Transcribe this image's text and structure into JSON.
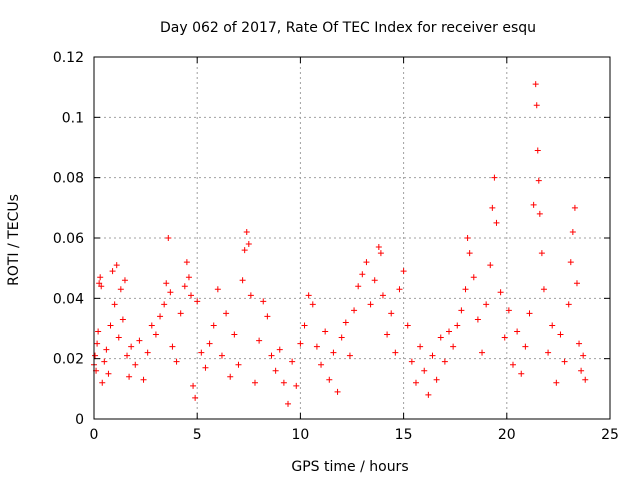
{
  "chart_data": {
    "type": "scatter",
    "title": "Day 062 of 2017, Rate Of TEC Index for receiver esqu",
    "xlabel": "GPS time / hours",
    "ylabel": "ROTI / TECUs",
    "xlim": [
      0,
      25
    ],
    "ylim": [
      0,
      0.12
    ],
    "x_ticks": [
      0,
      5,
      10,
      15,
      20,
      25
    ],
    "x_tick_labels": [
      "0",
      "5",
      "10",
      "15",
      "20",
      "25"
    ],
    "y_ticks": [
      0,
      0.02,
      0.04,
      0.06,
      0.08,
      0.1,
      0.12
    ],
    "y_tick_labels": [
      "0",
      "0.02",
      "0.04",
      "0.06",
      "0.08",
      "0.1",
      "0.12"
    ],
    "grid": true,
    "marker": "+",
    "series": [
      {
        "name": "ROTI",
        "color": "#ff0000",
        "points": [
          {
            "x": 0.0,
            "y": 0.018
          },
          {
            "x": 0.05,
            "y": 0.021
          },
          {
            "x": 0.1,
            "y": 0.016
          },
          {
            "x": 0.15,
            "y": 0.025
          },
          {
            "x": 0.2,
            "y": 0.029
          },
          {
            "x": 0.25,
            "y": 0.045
          },
          {
            "x": 0.3,
            "y": 0.047
          },
          {
            "x": 0.35,
            "y": 0.044
          },
          {
            "x": 0.4,
            "y": 0.012
          },
          {
            "x": 0.5,
            "y": 0.019
          },
          {
            "x": 0.6,
            "y": 0.023
          },
          {
            "x": 0.7,
            "y": 0.015
          },
          {
            "x": 0.8,
            "y": 0.031
          },
          {
            "x": 0.9,
            "y": 0.049
          },
          {
            "x": 1.0,
            "y": 0.038
          },
          {
            "x": 1.1,
            "y": 0.051
          },
          {
            "x": 1.2,
            "y": 0.027
          },
          {
            "x": 1.3,
            "y": 0.043
          },
          {
            "x": 1.4,
            "y": 0.033
          },
          {
            "x": 1.5,
            "y": 0.046
          },
          {
            "x": 1.6,
            "y": 0.021
          },
          {
            "x": 1.7,
            "y": 0.014
          },
          {
            "x": 1.8,
            "y": 0.024
          },
          {
            "x": 2.0,
            "y": 0.018
          },
          {
            "x": 2.2,
            "y": 0.026
          },
          {
            "x": 2.4,
            "y": 0.013
          },
          {
            "x": 2.6,
            "y": 0.022
          },
          {
            "x": 2.8,
            "y": 0.031
          },
          {
            "x": 3.0,
            "y": 0.028
          },
          {
            "x": 3.2,
            "y": 0.034
          },
          {
            "x": 3.4,
            "y": 0.038
          },
          {
            "x": 3.5,
            "y": 0.045
          },
          {
            "x": 3.6,
            "y": 0.06
          },
          {
            "x": 3.7,
            "y": 0.042
          },
          {
            "x": 3.8,
            "y": 0.024
          },
          {
            "x": 4.0,
            "y": 0.019
          },
          {
            "x": 4.2,
            "y": 0.035
          },
          {
            "x": 4.4,
            "y": 0.044
          },
          {
            "x": 4.5,
            "y": 0.052
          },
          {
            "x": 4.6,
            "y": 0.047
          },
          {
            "x": 4.7,
            "y": 0.041
          },
          {
            "x": 4.8,
            "y": 0.011
          },
          {
            "x": 4.9,
            "y": 0.007
          },
          {
            "x": 5.0,
            "y": 0.039
          },
          {
            "x": 5.2,
            "y": 0.022
          },
          {
            "x": 5.4,
            "y": 0.017
          },
          {
            "x": 5.6,
            "y": 0.025
          },
          {
            "x": 5.8,
            "y": 0.031
          },
          {
            "x": 6.0,
            "y": 0.043
          },
          {
            "x": 6.2,
            "y": 0.021
          },
          {
            "x": 6.4,
            "y": 0.035
          },
          {
            "x": 6.6,
            "y": 0.014
          },
          {
            "x": 6.8,
            "y": 0.028
          },
          {
            "x": 7.0,
            "y": 0.018
          },
          {
            "x": 7.2,
            "y": 0.046
          },
          {
            "x": 7.3,
            "y": 0.056
          },
          {
            "x": 7.4,
            "y": 0.062
          },
          {
            "x": 7.5,
            "y": 0.058
          },
          {
            "x": 7.6,
            "y": 0.041
          },
          {
            "x": 7.8,
            "y": 0.012
          },
          {
            "x": 8.0,
            "y": 0.026
          },
          {
            "x": 8.2,
            "y": 0.039
          },
          {
            "x": 8.4,
            "y": 0.034
          },
          {
            "x": 8.6,
            "y": 0.021
          },
          {
            "x": 8.8,
            "y": 0.016
          },
          {
            "x": 9.0,
            "y": 0.023
          },
          {
            "x": 9.2,
            "y": 0.012
          },
          {
            "x": 9.4,
            "y": 0.005
          },
          {
            "x": 9.6,
            "y": 0.019
          },
          {
            "x": 9.8,
            "y": 0.011
          },
          {
            "x": 10.0,
            "y": 0.025
          },
          {
            "x": 10.2,
            "y": 0.031
          },
          {
            "x": 10.4,
            "y": 0.041
          },
          {
            "x": 10.6,
            "y": 0.038
          },
          {
            "x": 10.8,
            "y": 0.024
          },
          {
            "x": 11.0,
            "y": 0.018
          },
          {
            "x": 11.2,
            "y": 0.029
          },
          {
            "x": 11.4,
            "y": 0.013
          },
          {
            "x": 11.6,
            "y": 0.022
          },
          {
            "x": 11.8,
            "y": 0.009
          },
          {
            "x": 12.0,
            "y": 0.027
          },
          {
            "x": 12.2,
            "y": 0.032
          },
          {
            "x": 12.4,
            "y": 0.021
          },
          {
            "x": 12.6,
            "y": 0.036
          },
          {
            "x": 12.8,
            "y": 0.044
          },
          {
            "x": 13.0,
            "y": 0.048
          },
          {
            "x": 13.2,
            "y": 0.052
          },
          {
            "x": 13.4,
            "y": 0.038
          },
          {
            "x": 13.6,
            "y": 0.046
          },
          {
            "x": 13.8,
            "y": 0.057
          },
          {
            "x": 13.9,
            "y": 0.055
          },
          {
            "x": 14.0,
            "y": 0.041
          },
          {
            "x": 14.2,
            "y": 0.028
          },
          {
            "x": 14.4,
            "y": 0.035
          },
          {
            "x": 14.6,
            "y": 0.022
          },
          {
            "x": 14.8,
            "y": 0.043
          },
          {
            "x": 15.0,
            "y": 0.049
          },
          {
            "x": 15.2,
            "y": 0.031
          },
          {
            "x": 15.4,
            "y": 0.019
          },
          {
            "x": 15.6,
            "y": 0.012
          },
          {
            "x": 15.8,
            "y": 0.024
          },
          {
            "x": 16.0,
            "y": 0.016
          },
          {
            "x": 16.2,
            "y": 0.008
          },
          {
            "x": 16.4,
            "y": 0.021
          },
          {
            "x": 16.6,
            "y": 0.013
          },
          {
            "x": 16.8,
            "y": 0.027
          },
          {
            "x": 17.0,
            "y": 0.019
          },
          {
            "x": 17.2,
            "y": 0.029
          },
          {
            "x": 17.4,
            "y": 0.024
          },
          {
            "x": 17.6,
            "y": 0.031
          },
          {
            "x": 17.8,
            "y": 0.036
          },
          {
            "x": 18.0,
            "y": 0.043
          },
          {
            "x": 18.1,
            "y": 0.06
          },
          {
            "x": 18.2,
            "y": 0.055
          },
          {
            "x": 18.4,
            "y": 0.047
          },
          {
            "x": 18.6,
            "y": 0.033
          },
          {
            "x": 18.8,
            "y": 0.022
          },
          {
            "x": 19.0,
            "y": 0.038
          },
          {
            "x": 19.2,
            "y": 0.051
          },
          {
            "x": 19.3,
            "y": 0.07
          },
          {
            "x": 19.4,
            "y": 0.08
          },
          {
            "x": 19.5,
            "y": 0.065
          },
          {
            "x": 19.7,
            "y": 0.042
          },
          {
            "x": 19.9,
            "y": 0.027
          },
          {
            "x": 20.1,
            "y": 0.036
          },
          {
            "x": 20.3,
            "y": 0.018
          },
          {
            "x": 20.5,
            "y": 0.029
          },
          {
            "x": 20.7,
            "y": 0.015
          },
          {
            "x": 20.9,
            "y": 0.024
          },
          {
            "x": 21.1,
            "y": 0.035
          },
          {
            "x": 21.3,
            "y": 0.071
          },
          {
            "x": 21.4,
            "y": 0.111
          },
          {
            "x": 21.45,
            "y": 0.104
          },
          {
            "x": 21.5,
            "y": 0.089
          },
          {
            "x": 21.55,
            "y": 0.079
          },
          {
            "x": 21.6,
            "y": 0.068
          },
          {
            "x": 21.7,
            "y": 0.055
          },
          {
            "x": 21.8,
            "y": 0.043
          },
          {
            "x": 22.0,
            "y": 0.022
          },
          {
            "x": 22.2,
            "y": 0.031
          },
          {
            "x": 22.4,
            "y": 0.012
          },
          {
            "x": 22.6,
            "y": 0.028
          },
          {
            "x": 22.8,
            "y": 0.019
          },
          {
            "x": 23.0,
            "y": 0.038
          },
          {
            "x": 23.1,
            "y": 0.052
          },
          {
            "x": 23.2,
            "y": 0.062
          },
          {
            "x": 23.3,
            "y": 0.07
          },
          {
            "x": 23.4,
            "y": 0.045
          },
          {
            "x": 23.5,
            "y": 0.025
          },
          {
            "x": 23.6,
            "y": 0.016
          },
          {
            "x": 23.7,
            "y": 0.021
          },
          {
            "x": 23.8,
            "y": 0.013
          }
        ]
      }
    ]
  }
}
